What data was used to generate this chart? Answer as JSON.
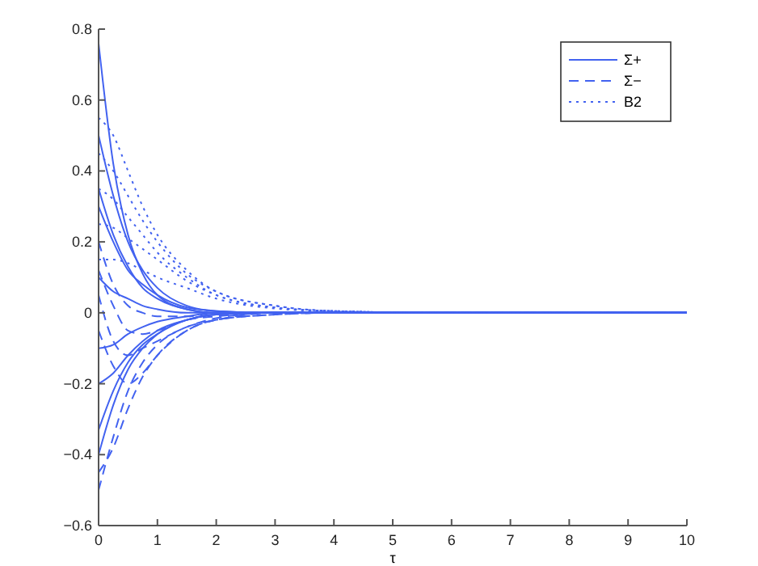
{
  "chart_data": {
    "type": "line",
    "xlabel": "τ",
    "x": [
      0,
      0.25,
      0.5,
      0.75,
      1,
      1.5,
      2,
      3,
      4,
      6,
      10
    ],
    "xlim": [
      0,
      10
    ],
    "xticks": [
      0,
      1,
      2,
      3,
      4,
      5,
      6,
      7,
      8,
      9,
      10
    ],
    "ylim": [
      -0.6,
      0.8
    ],
    "yticks": [
      -0.6,
      -0.4,
      -0.2,
      0,
      0.2,
      0.4,
      0.6,
      0.8
    ],
    "legend": "top right",
    "grid": false,
    "series": [
      {
        "name": "Σ+",
        "color": "#4262f0",
        "line_style": "solid",
        "values": [
          0.76,
          0.42,
          0.22,
          0.11,
          0.05,
          0.01,
          0,
          0,
          0,
          0,
          0
        ]
      },
      {
        "color": "#4262f0",
        "line_style": "solid",
        "values": [
          0.5,
          0.33,
          0.2,
          0.12,
          0.07,
          0.02,
          0.005,
          0,
          0,
          0,
          0
        ]
      },
      {
        "color": "#4262f0",
        "line_style": "solid",
        "values": [
          0.35,
          0.22,
          0.13,
          0.07,
          0.04,
          0.01,
          0,
          0,
          0,
          0,
          0
        ]
      },
      {
        "color": "#4262f0",
        "line_style": "solid",
        "values": [
          0.3,
          0.2,
          0.12,
          0.08,
          0.05,
          0.015,
          0.005,
          0,
          0,
          0,
          0
        ]
      },
      {
        "color": "#4262f0",
        "line_style": "solid",
        "values": [
          0.1,
          0.06,
          0.04,
          0.02,
          0.01,
          0,
          0,
          0,
          0,
          0,
          0
        ]
      },
      {
        "color": "#4262f0",
        "line_style": "solid",
        "values": [
          -0.1,
          -0.09,
          -0.06,
          -0.04,
          -0.025,
          -0.01,
          0,
          0,
          0,
          0,
          0
        ]
      },
      {
        "color": "#4262f0",
        "line_style": "solid",
        "values": [
          -0.2,
          -0.17,
          -0.12,
          -0.08,
          -0.05,
          -0.02,
          -0.005,
          0,
          0,
          0,
          0
        ]
      },
      {
        "color": "#4262f0",
        "line_style": "solid",
        "values": [
          -0.33,
          -0.22,
          -0.14,
          -0.09,
          -0.06,
          -0.02,
          -0.005,
          0,
          0,
          0,
          0
        ]
      },
      {
        "color": "#4262f0",
        "line_style": "solid",
        "values": [
          -0.4,
          -0.26,
          -0.16,
          -0.1,
          -0.06,
          -0.02,
          -0.005,
          0,
          0,
          0,
          0
        ]
      },
      {
        "name": "Σ−",
        "color": "#4262f0",
        "line_style": "dashed",
        "values": [
          0.2,
          0.08,
          0.02,
          0,
          -0.01,
          -0.01,
          0,
          0,
          0,
          0,
          0
        ]
      },
      {
        "color": "#4262f0",
        "line_style": "dashed",
        "values": [
          0.12,
          0.02,
          -0.05,
          -0.06,
          -0.05,
          -0.02,
          -0.01,
          0,
          0,
          0,
          0
        ]
      },
      {
        "color": "#4262f0",
        "line_style": "dashed",
        "values": [
          -0.5,
          -0.35,
          -0.22,
          -0.14,
          -0.09,
          -0.04,
          -0.02,
          0,
          0,
          0,
          0
        ]
      },
      {
        "color": "#4262f0",
        "line_style": "dashed",
        "values": [
          -0.45,
          -0.38,
          -0.27,
          -0.18,
          -0.12,
          -0.05,
          -0.02,
          -0.005,
          0,
          0,
          0
        ]
      },
      {
        "color": "#4262f0",
        "line_style": "dashed",
        "values": [
          -0.05,
          -0.15,
          -0.2,
          -0.17,
          -0.12,
          -0.05,
          -0.02,
          -0.005,
          0,
          0,
          0
        ]
      },
      {
        "color": "#4262f0",
        "line_style": "dashed",
        "values": [
          0.05,
          -0.08,
          -0.12,
          -0.1,
          -0.08,
          -0.04,
          -0.015,
          0,
          0,
          0,
          0
        ]
      },
      {
        "name": "B2",
        "color": "#4262f0",
        "line_style": "dotted",
        "values": [
          0.55,
          0.5,
          0.4,
          0.3,
          0.22,
          0.12,
          0.06,
          0.02,
          0.005,
          0,
          0
        ]
      },
      {
        "color": "#4262f0",
        "line_style": "dotted",
        "values": [
          0.45,
          0.4,
          0.33,
          0.26,
          0.2,
          0.11,
          0.06,
          0.02,
          0.005,
          0,
          0
        ]
      },
      {
        "color": "#4262f0",
        "line_style": "dotted",
        "values": [
          0.35,
          0.32,
          0.27,
          0.22,
          0.17,
          0.1,
          0.05,
          0.015,
          0.005,
          0,
          0
        ]
      },
      {
        "color": "#4262f0",
        "line_style": "dotted",
        "values": [
          0.25,
          0.24,
          0.21,
          0.18,
          0.15,
          0.09,
          0.05,
          0.015,
          0.005,
          0,
          0
        ]
      },
      {
        "color": "#4262f0",
        "line_style": "dotted",
        "values": [
          0.15,
          0.15,
          0.14,
          0.12,
          0.1,
          0.07,
          0.04,
          0.012,
          0.004,
          0,
          0
        ]
      }
    ]
  }
}
